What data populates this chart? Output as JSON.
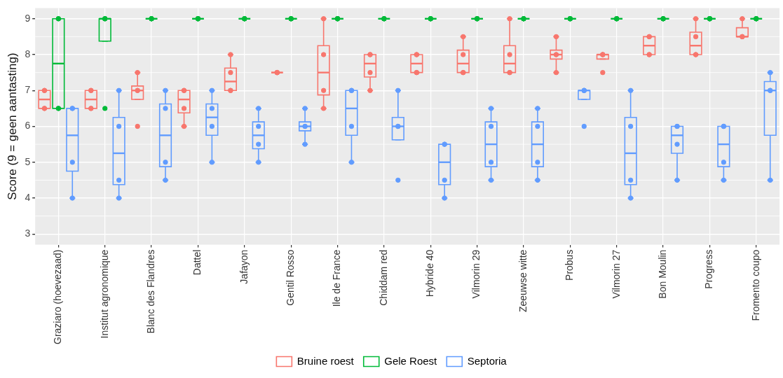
{
  "chart_data": {
    "type": "box",
    "ylabel": "Score (9 = geen aantasting)",
    "categories": [
      "Graziaro (hoevezaad)",
      "Institut agronomique",
      "Blanc des Flandres",
      "Dattel",
      "Jafayon",
      "Gentil Rosso",
      "Ile de France",
      "Chiddam red",
      "Hybride 40",
      "Vilmorin 29",
      "Zeeuwse witte",
      "Probus",
      "Vilmorin 27",
      "Bon Moulin",
      "Progress",
      "Fromento coupo"
    ],
    "ylim": [
      2.7,
      9.3
    ],
    "yticks": [
      3,
      4,
      5,
      6,
      7,
      8,
      9
    ],
    "grid": true,
    "legend": "bottom",
    "series": [
      {
        "name": "Bruine roest",
        "type": "box",
        "color": "#f8766d",
        "boxes": [
          {
            "low": 6.5,
            "q1": 6.5,
            "median": 6.75,
            "q3": 7,
            "high": 7
          },
          {
            "low": 6.5,
            "q1": 6.5,
            "median": 6.75,
            "q3": 7,
            "high": 7
          },
          {
            "low": 6.75,
            "q1": 6.75,
            "median": 7,
            "q3": 7.125,
            "high": 7.5
          },
          {
            "low": 6,
            "q1": 6.375,
            "median": 6.75,
            "q3": 7,
            "high": 7
          },
          {
            "low": 7,
            "q1": 7,
            "median": 7.25,
            "q3": 7.625,
            "high": 8
          },
          {
            "low": 7.5,
            "q1": 7.5,
            "median": 7.5,
            "q3": 7.5,
            "high": 7.5
          },
          {
            "low": 6.5,
            "q1": 6.875,
            "median": 7.5,
            "q3": 8.25,
            "high": 9
          },
          {
            "low": 7,
            "q1": 7.375,
            "median": 7.75,
            "q3": 8,
            "high": 8
          },
          {
            "low": 7.5,
            "q1": 7.5,
            "median": 7.75,
            "q3": 8,
            "high": 8
          },
          {
            "low": 7.5,
            "q1": 7.5,
            "median": 7.75,
            "q3": 8.125,
            "high": 8.5
          },
          {
            "low": 7.5,
            "q1": 7.5,
            "median": 7.75,
            "q3": 8.25,
            "high": 9
          },
          {
            "low": 7.5,
            "q1": 7.875,
            "median": 8,
            "q3": 8.125,
            "high": 8.5
          },
          {
            "low": 7.875,
            "q1": 7.875,
            "median": 8,
            "q3": 8,
            "high": 8
          },
          {
            "low": 8,
            "q1": 8,
            "median": 8.25,
            "q3": 8.5,
            "high": 8.5
          },
          {
            "low": 8,
            "q1": 8,
            "median": 8.25,
            "q3": 8.625,
            "high": 9
          },
          {
            "low": 8.5,
            "q1": 8.5,
            "median": 8.5,
            "q3": 8.75,
            "high": 9
          }
        ]
      },
      {
        "name": "Gele Roest",
        "type": "box",
        "color": "#00ba38",
        "boxes": [
          {
            "low": 6.5,
            "q1": 6.5,
            "median": 7.75,
            "q3": 9,
            "high": 9
          },
          {
            "low": 8.375,
            "q1": 8.375,
            "median": 9,
            "q3": 9,
            "high": 9
          },
          {
            "low": 9,
            "q1": 9,
            "median": 9,
            "q3": 9,
            "high": 9
          },
          {
            "low": 9,
            "q1": 9,
            "median": 9,
            "q3": 9,
            "high": 9
          },
          {
            "low": 9,
            "q1": 9,
            "median": 9,
            "q3": 9,
            "high": 9
          },
          {
            "low": 9,
            "q1": 9,
            "median": 9,
            "q3": 9,
            "high": 9
          },
          {
            "low": 9,
            "q1": 9,
            "median": 9,
            "q3": 9,
            "high": 9
          },
          {
            "low": 9,
            "q1": 9,
            "median": 9,
            "q3": 9,
            "high": 9
          },
          {
            "low": 9,
            "q1": 9,
            "median": 9,
            "q3": 9,
            "high": 9
          },
          {
            "low": 9,
            "q1": 9,
            "median": 9,
            "q3": 9,
            "high": 9
          },
          {
            "low": 9,
            "q1": 9,
            "median": 9,
            "q3": 9,
            "high": 9
          },
          {
            "low": 9,
            "q1": 9,
            "median": 9,
            "q3": 9,
            "high": 9
          },
          {
            "low": 9,
            "q1": 9,
            "median": 9,
            "q3": 9,
            "high": 9
          },
          {
            "low": 9,
            "q1": 9,
            "median": 9,
            "q3": 9,
            "high": 9
          },
          {
            "low": 9,
            "q1": 9,
            "median": 9,
            "q3": 9,
            "high": 9
          },
          {
            "low": 9,
            "q1": 9,
            "median": 9,
            "q3": 9,
            "high": 9
          }
        ]
      },
      {
        "name": "Septoria",
        "type": "box",
        "color": "#619cff",
        "boxes": [
          {
            "low": 4,
            "q1": 4.75,
            "median": 5.75,
            "q3": 6.5,
            "high": 6.5
          },
          {
            "low": 4,
            "q1": 4.375,
            "median": 5.25,
            "q3": 6.25,
            "high": 7
          },
          {
            "low": 4.5,
            "q1": 4.875,
            "median": 5.75,
            "q3": 6.625,
            "high": 7
          },
          {
            "low": 5,
            "q1": 5.75,
            "median": 6.25,
            "q3": 6.625,
            "high": 7
          },
          {
            "low": 5,
            "q1": 5.375,
            "median": 5.75,
            "q3": 6.125,
            "high": 6.5
          },
          {
            "low": 5.5,
            "q1": 5.875,
            "median": 6,
            "q3": 6.125,
            "high": 6.5
          },
          {
            "low": 5,
            "q1": 5.75,
            "median": 6.5,
            "q3": 7,
            "high": 7
          },
          {
            "low": 5.625,
            "q1": 5.625,
            "median": 6,
            "q3": 6.25,
            "high": 7
          },
          {
            "low": 4,
            "q1": 4.375,
            "median": 5,
            "q3": 5.5,
            "high": 5.5
          },
          {
            "low": 4.5,
            "q1": 4.875,
            "median": 5.5,
            "q3": 6.125,
            "high": 6.5
          },
          {
            "low": 4.5,
            "q1": 4.875,
            "median": 5.5,
            "q3": 6.125,
            "high": 6.5
          },
          {
            "low": 6.75,
            "q1": 6.75,
            "median": 7,
            "q3": 7,
            "high": 7
          },
          {
            "low": 4,
            "q1": 4.375,
            "median": 5.25,
            "q3": 6.25,
            "high": 7
          },
          {
            "low": 4.5,
            "q1": 5.25,
            "median": 5.75,
            "q3": 6,
            "high": 6
          },
          {
            "low": 4.5,
            "q1": 4.875,
            "median": 5.5,
            "q3": 6,
            "high": 6
          },
          {
            "low": 4.5,
            "q1": 5.75,
            "median": 7,
            "q3": 7.25,
            "high": 7.5
          }
        ]
      },
      {
        "type": "scatter",
        "color": "#f8766d",
        "marker": "circle",
        "x": [
          "Graziaro (hoevezaad)",
          "Graziaro (hoevezaad)",
          "Graziaro (hoevezaad)",
          "Graziaro (hoevezaad)",
          "Institut agronomique",
          "Institut agronomique",
          "Institut agronomique",
          "Institut agronomique",
          "Blanc des Flandres",
          "Blanc des Flandres",
          "Blanc des Flandres",
          "Blanc des Flandres",
          "Dattel",
          "Dattel",
          "Dattel",
          "Dattel",
          "Jafayon",
          "Jafayon",
          "Jafayon",
          "Jafayon",
          "Gentil Rosso",
          "Gentil Rosso",
          "Gentil Rosso",
          "Gentil Rosso",
          "Ile de France",
          "Ile de France",
          "Ile de France",
          "Ile de France",
          "Chiddam red",
          "Chiddam red",
          "Chiddam red",
          "Chiddam red",
          "Hybride 40",
          "Hybride 40",
          "Hybride 40",
          "Hybride 40",
          "Vilmorin 29",
          "Vilmorin 29",
          "Vilmorin 29",
          "Vilmorin 29",
          "Zeeuwse witte",
          "Zeeuwse witte",
          "Zeeuwse witte",
          "Zeeuwse witte",
          "Probus",
          "Probus",
          "Probus",
          "Probus",
          "Vilmorin 27",
          "Vilmorin 27",
          "Vilmorin 27",
          "Vilmorin 27",
          "Bon Moulin",
          "Bon Moulin",
          "Bon Moulin",
          "Bon Moulin",
          "Progress",
          "Progress",
          "Progress",
          "Progress",
          "Fromento coupo",
          "Fromento coupo",
          "Fromento coupo",
          "Fromento coupo"
        ],
        "values": [
          6.5,
          6.5,
          7,
          7,
          6.5,
          6.5,
          7,
          7,
          6,
          7,
          7,
          7.5,
          6,
          6.5,
          7,
          7,
          7,
          7,
          7.5,
          8,
          7.5,
          7.5,
          7.5,
          7.5,
          6.5,
          7,
          8,
          9,
          7,
          7.5,
          8,
          8,
          7.5,
          7.5,
          8,
          8,
          7.5,
          7.5,
          8,
          8.5,
          7.5,
          7.5,
          8,
          9,
          7.5,
          8,
          8,
          8.5,
          7.5,
          8,
          8,
          8,
          8,
          8,
          8.5,
          8.5,
          8,
          8,
          8.5,
          9,
          8.5,
          8.5,
          8.5,
          9
        ]
      },
      {
        "type": "scatter",
        "color": "#00ba38",
        "marker": "circle",
        "x": [
          "Graziaro (hoevezaad)",
          "Graziaro (hoevezaad)",
          "Graziaro (hoevezaad)",
          "Graziaro (hoevezaad)",
          "Institut agronomique",
          "Institut agronomique",
          "Institut agronomique",
          "Institut agronomique",
          "Blanc des Flandres",
          "Blanc des Flandres",
          "Blanc des Flandres",
          "Blanc des Flandres",
          "Dattel",
          "Dattel",
          "Dattel",
          "Dattel",
          "Jafayon",
          "Jafayon",
          "Jafayon",
          "Jafayon",
          "Gentil Rosso",
          "Gentil Rosso",
          "Gentil Rosso",
          "Gentil Rosso",
          "Ile de France",
          "Ile de France",
          "Ile de France",
          "Ile de France",
          "Chiddam red",
          "Chiddam red",
          "Chiddam red",
          "Chiddam red",
          "Hybride 40",
          "Hybride 40",
          "Hybride 40",
          "Hybride 40",
          "Vilmorin 29",
          "Vilmorin 29",
          "Vilmorin 29",
          "Vilmorin 29",
          "Zeeuwse witte",
          "Zeeuwse witte",
          "Zeeuwse witte",
          "Zeeuwse witte",
          "Probus",
          "Probus",
          "Probus",
          "Probus",
          "Vilmorin 27",
          "Vilmorin 27",
          "Vilmorin 27",
          "Vilmorin 27",
          "Bon Moulin",
          "Bon Moulin",
          "Bon Moulin",
          "Bon Moulin",
          "Progress",
          "Progress",
          "Progress",
          "Progress",
          "Fromento coupo",
          "Fromento coupo",
          "Fromento coupo",
          "Fromento coupo"
        ],
        "values": [
          6.5,
          6.5,
          9,
          9,
          6.5,
          9,
          9,
          9,
          9,
          9,
          9,
          9,
          9,
          9,
          9,
          9,
          9,
          9,
          9,
          9,
          9,
          9,
          9,
          9,
          9,
          9,
          9,
          9,
          9,
          9,
          9,
          9,
          9,
          9,
          9,
          9,
          9,
          9,
          9,
          9,
          9,
          9,
          9,
          9,
          9,
          9,
          9,
          9,
          9,
          9,
          9,
          9,
          9,
          9,
          9,
          9,
          9,
          9,
          9,
          9,
          9,
          9,
          9,
          9
        ]
      },
      {
        "type": "scatter",
        "color": "#619cff",
        "marker": "circle",
        "x": [
          "Graziaro (hoevezaad)",
          "Graziaro (hoevezaad)",
          "Graziaro (hoevezaad)",
          "Graziaro (hoevezaad)",
          "Institut agronomique",
          "Institut agronomique",
          "Institut agronomique",
          "Institut agronomique",
          "Blanc des Flandres",
          "Blanc des Flandres",
          "Blanc des Flandres",
          "Blanc des Flandres",
          "Dattel",
          "Dattel",
          "Dattel",
          "Dattel",
          "Jafayon",
          "Jafayon",
          "Jafayon",
          "Jafayon",
          "Gentil Rosso",
          "Gentil Rosso",
          "Gentil Rosso",
          "Gentil Rosso",
          "Ile de France",
          "Ile de France",
          "Ile de France",
          "Ile de France",
          "Chiddam red",
          "Chiddam red",
          "Chiddam red",
          "Chiddam red",
          "Hybride 40",
          "Hybride 40",
          "Hybride 40",
          "Hybride 40",
          "Vilmorin 29",
          "Vilmorin 29",
          "Vilmorin 29",
          "Vilmorin 29",
          "Zeeuwse witte",
          "Zeeuwse witte",
          "Zeeuwse witte",
          "Zeeuwse witte",
          "Probus",
          "Probus",
          "Probus",
          "Probus",
          "Vilmorin 27",
          "Vilmorin 27",
          "Vilmorin 27",
          "Vilmorin 27",
          "Bon Moulin",
          "Bon Moulin",
          "Bon Moulin",
          "Bon Moulin",
          "Progress",
          "Progress",
          "Progress",
          "Progress",
          "Fromento coupo",
          "Fromento coupo",
          "Fromento coupo",
          "Fromento coupo"
        ],
        "values": [
          4,
          5,
          6.5,
          6.5,
          4,
          4.5,
          6,
          7,
          4.5,
          5,
          6.5,
          7,
          5,
          6,
          6.5,
          7,
          5,
          5.5,
          6,
          6.5,
          5.5,
          6,
          6,
          6.5,
          5,
          6,
          7,
          7,
          4.5,
          6,
          6,
          7,
          4,
          4.5,
          5.5,
          5.5,
          4.5,
          5,
          6,
          6.5,
          4.5,
          5,
          6,
          6.5,
          6,
          7,
          7,
          7,
          4,
          4.5,
          6,
          7,
          4.5,
          5.5,
          6,
          6,
          4.5,
          5,
          6,
          6,
          4.5,
          7,
          7,
          7.5
        ]
      }
    ]
  }
}
